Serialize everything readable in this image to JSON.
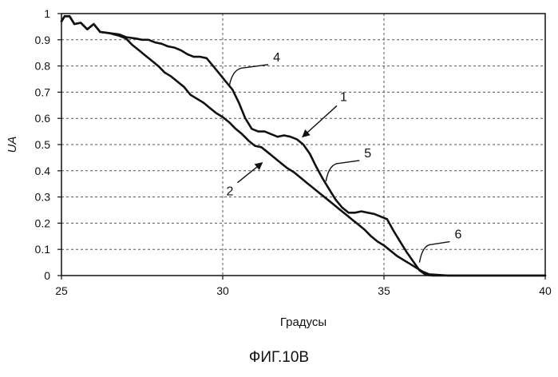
{
  "chart_data": {
    "type": "line",
    "xlabel": "Градусы",
    "ylabel": "UA",
    "xlim": [
      25,
      40
    ],
    "ylim": [
      0,
      1
    ],
    "x_ticks": [
      "25",
      "30",
      "35",
      "40"
    ],
    "y_ticks": [
      "0",
      "0.1",
      "0.2",
      "0.3",
      "0.4",
      "0.5",
      "0.6",
      "0.7",
      "0.8",
      "0.9",
      "1"
    ],
    "grid": "dashed",
    "series": [
      {
        "name": "",
        "x": [
          25.0,
          25.1,
          25.25,
          25.4,
          25.6,
          25.8,
          26.0,
          26.2,
          26.5,
          26.8,
          27.0,
          27.3,
          27.5,
          27.7,
          27.9,
          28.1,
          28.3,
          28.5,
          28.7,
          28.9,
          29.1,
          29.3,
          29.5,
          29.7,
          29.9,
          30.1,
          30.3,
          30.5,
          30.7,
          30.9,
          31.1,
          31.3,
          31.5,
          31.7,
          31.9,
          32.1,
          32.3,
          32.5,
          32.7,
          32.9,
          33.1,
          33.3,
          33.5,
          33.7,
          33.9,
          34.1,
          34.3,
          34.5,
          34.7,
          34.9,
          35.1,
          35.3,
          35.5,
          35.7,
          35.9,
          36.1,
          36.3,
          36.5,
          37.0,
          38.0,
          39.0,
          40.0
        ],
        "values": [
          0.97,
          0.99,
          0.99,
          0.96,
          0.965,
          0.94,
          0.96,
          0.93,
          0.925,
          0.92,
          0.91,
          0.905,
          0.9,
          0.9,
          0.89,
          0.885,
          0.875,
          0.87,
          0.86,
          0.845,
          0.835,
          0.835,
          0.83,
          0.8,
          0.77,
          0.74,
          0.71,
          0.66,
          0.6,
          0.56,
          0.55,
          0.55,
          0.54,
          0.53,
          0.535,
          0.53,
          0.52,
          0.5,
          0.465,
          0.415,
          0.37,
          0.33,
          0.29,
          0.26,
          0.24,
          0.24,
          0.245,
          0.24,
          0.235,
          0.225,
          0.215,
          0.17,
          0.13,
          0.09,
          0.055,
          0.02,
          0.003,
          0.0,
          0.0,
          0.0,
          0.0,
          0.0
        ]
      },
      {
        "name": "",
        "x": [
          25.0,
          25.1,
          25.25,
          25.4,
          25.6,
          25.8,
          26.0,
          26.2,
          26.5,
          26.8,
          27.0,
          27.2,
          27.4,
          27.6,
          27.8,
          28.0,
          28.2,
          28.4,
          28.6,
          28.8,
          29.0,
          29.2,
          29.4,
          29.6,
          29.8,
          30.0,
          30.2,
          30.4,
          30.6,
          30.8,
          31.0,
          31.2,
          31.4,
          31.6,
          31.8,
          32.0,
          32.2,
          32.4,
          32.6,
          32.8,
          33.0,
          33.2,
          33.4,
          33.6,
          33.8,
          34.0,
          34.2,
          34.4,
          34.6,
          34.8,
          35.0,
          35.2,
          35.4,
          35.6,
          35.8,
          36.0,
          36.2,
          36.4,
          37.0,
          38.0,
          39.0,
          40.0
        ],
        "values": [
          0.97,
          0.99,
          0.99,
          0.96,
          0.965,
          0.94,
          0.96,
          0.93,
          0.925,
          0.915,
          0.905,
          0.88,
          0.86,
          0.84,
          0.82,
          0.8,
          0.775,
          0.76,
          0.74,
          0.72,
          0.69,
          0.675,
          0.66,
          0.64,
          0.62,
          0.605,
          0.585,
          0.56,
          0.54,
          0.515,
          0.495,
          0.49,
          0.47,
          0.45,
          0.43,
          0.41,
          0.395,
          0.375,
          0.355,
          0.335,
          0.315,
          0.295,
          0.275,
          0.255,
          0.235,
          0.215,
          0.195,
          0.175,
          0.15,
          0.13,
          0.115,
          0.095,
          0.075,
          0.06,
          0.045,
          0.03,
          0.015,
          0.005,
          0.0,
          0.0,
          0.0,
          0.0
        ]
      }
    ],
    "annotations": [
      {
        "label": "1",
        "x": 32.4,
        "y": 0.52
      },
      {
        "label": "2",
        "x": 31.3,
        "y": 0.44
      },
      {
        "label": "4",
        "x": 30.2,
        "y": 0.72
      },
      {
        "label": "5",
        "x": 33.2,
        "y": 0.36
      },
      {
        "label": "6",
        "x": 36.1,
        "y": 0.05
      }
    ],
    "caption": "ФИГ.10В"
  }
}
